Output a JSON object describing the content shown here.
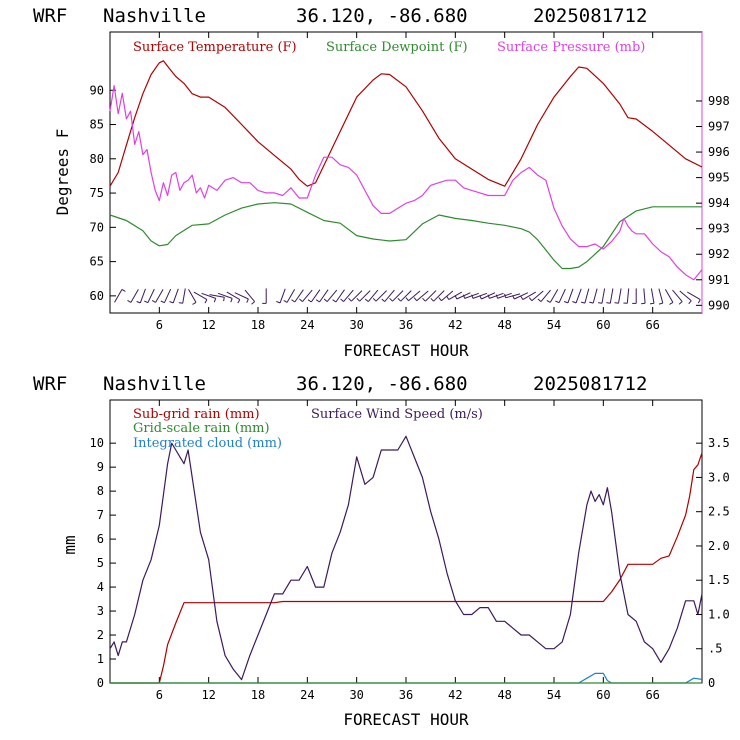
{
  "header": {
    "model": "WRF",
    "station": "Nashville",
    "coords": "36.120, -86.680",
    "run": "2025081712"
  },
  "colors": {
    "temperature": "#b00000",
    "dewpoint": "#2f8a2f",
    "pressure": "#e040e0",
    "wind": "#3c1a5a",
    "rain": "#b00000",
    "gridrain": "#2f8a2f",
    "cloud": "#1f7fd0"
  },
  "chart_data": [
    {
      "type": "line",
      "xlabel": "FORECAST HOUR",
      "ylabel": "Degrees F",
      "xlim": [
        0,
        72
      ],
      "ylim": [
        57.5,
        98.5
      ],
      "y2lim": [
        989.7,
        1000.7
      ],
      "x_ticks": [
        6,
        12,
        18,
        24,
        30,
        36,
        42,
        48,
        54,
        60,
        66
      ],
      "x_tick_labels": [
        "6",
        "12",
        "18",
        "24",
        "30",
        "36",
        "42",
        "48",
        "54",
        "60",
        "66"
      ],
      "y_ticks": [
        60,
        65,
        70,
        75,
        80,
        85,
        90
      ],
      "y2_ticks": [
        990,
        991,
        992,
        993,
        994,
        995,
        996,
        997,
        998
      ],
      "grid": false,
      "legend_position": "top",
      "legend": [
        "Surface Temperature (F)",
        "Surface Dewpoint (F)",
        "Surface Pressure (mb)"
      ],
      "series": [
        {
          "name": "Surface Temperature (F)",
          "axis": "left",
          "x": [
            0,
            1,
            2,
            3,
            4,
            5,
            6,
            6.5,
            7,
            8,
            9,
            10,
            11,
            12,
            14,
            16,
            18,
            20,
            22,
            23,
            24,
            25,
            26,
            28,
            30,
            32,
            33,
            34,
            36,
            38,
            40,
            42,
            44,
            46,
            48,
            50,
            52,
            54,
            56,
            57,
            58,
            60,
            62,
            63,
            64,
            66,
            68,
            70,
            72
          ],
          "values": [
            76,
            78,
            82,
            86,
            89.5,
            92.3,
            94,
            94.3,
            93.5,
            92,
            91,
            89.5,
            89,
            89,
            87.5,
            85,
            82.5,
            80.5,
            78.5,
            77,
            76,
            76.5,
            79,
            84,
            89,
            91.5,
            92.4,
            92.3,
            90.5,
            87,
            83,
            80,
            78.5,
            77,
            76,
            80,
            85,
            89,
            92,
            93.4,
            93.2,
            91,
            88,
            86,
            85.8,
            84,
            82,
            80,
            78.8
          ]
        },
        {
          "name": "Surface Dewpoint (F)",
          "axis": "left",
          "x": [
            0,
            2,
            4,
            5,
            6,
            7,
            8,
            10,
            12,
            14,
            16,
            18,
            20,
            22,
            24,
            26,
            28,
            30,
            32,
            34,
            36,
            38,
            40,
            42,
            44,
            46,
            48,
            50,
            51,
            52,
            53,
            54,
            55,
            56,
            57,
            58,
            60,
            62,
            64,
            66,
            68,
            70,
            72
          ],
          "values": [
            71.8,
            71,
            69.5,
            68,
            67.3,
            67.5,
            68.8,
            70.3,
            70.5,
            71.8,
            72.8,
            73.4,
            73.6,
            73.4,
            72.2,
            71,
            70.6,
            68.8,
            68.3,
            68,
            68.2,
            70.5,
            71.8,
            71.3,
            71,
            70.6,
            70.3,
            69.8,
            69.3,
            68.2,
            66.7,
            65.2,
            64,
            64,
            64.2,
            65,
            67.2,
            70.8,
            72.4,
            73,
            73,
            73,
            73
          ]
        },
        {
          "name": "Surface Pressure (mb)",
          "axis": "right",
          "x": [
            0,
            0.5,
            1,
            1.5,
            2,
            2.5,
            3,
            3.5,
            4,
            4.5,
            5,
            5.5,
            6,
            6.5,
            7,
            7.5,
            8,
            8.5,
            9,
            9.5,
            10,
            10.5,
            11,
            11.5,
            12,
            13,
            14,
            15,
            16,
            17,
            18,
            19,
            20,
            21,
            22,
            23,
            24,
            25,
            26,
            27,
            28,
            29,
            30,
            31,
            32,
            33,
            34,
            35,
            36,
            37,
            38,
            39,
            40,
            41,
            42,
            43,
            44,
            45,
            46,
            47,
            48,
            49,
            50,
            51,
            52,
            53,
            54,
            55,
            56,
            57,
            58,
            59,
            60,
            61,
            62,
            62.5,
            63,
            63.5,
            64,
            65,
            66,
            67,
            68,
            69,
            70,
            71,
            72
          ],
          "values": [
            997.6,
            998.6,
            997.5,
            998.3,
            997.3,
            997.6,
            996.3,
            996.8,
            995.9,
            996.1,
            995.2,
            994.5,
            994.1,
            994.8,
            994.3,
            995.1,
            995.2,
            994.5,
            994.8,
            994.9,
            995.1,
            994.4,
            994.6,
            994.2,
            994.7,
            994.5,
            994.9,
            995,
            994.8,
            994.8,
            994.5,
            994.4,
            994.4,
            994.3,
            994.6,
            994.2,
            994.2,
            995.1,
            995.8,
            995.8,
            995.5,
            995.4,
            995.1,
            994.5,
            993.9,
            993.6,
            993.6,
            993.8,
            994,
            994.1,
            994.3,
            994.7,
            994.8,
            994.9,
            994.9,
            994.6,
            994.5,
            994.4,
            994.3,
            994.3,
            994.3,
            994.9,
            995.2,
            995.4,
            995.1,
            994.9,
            993.8,
            993.1,
            992.6,
            992.3,
            992.3,
            992.4,
            992.2,
            992.5,
            992.9,
            993.4,
            993.1,
            992.9,
            992.8,
            992.8,
            992.4,
            992.1,
            991.9,
            991.5,
            991.2,
            991,
            991.4
          ]
        },
        {
          "name": "Wind barbs",
          "axis": "left",
          "type": "barbs",
          "x": [
            1,
            3,
            4,
            5,
            6,
            7,
            8,
            9,
            10,
            11,
            12,
            13,
            14,
            15,
            16,
            17,
            19,
            21,
            22,
            23,
            24,
            25,
            26,
            27,
            28,
            29,
            30,
            31,
            32,
            33,
            34,
            35,
            36,
            37,
            38,
            39,
            40,
            41,
            42,
            43,
            44,
            45,
            46,
            47,
            48,
            49,
            50,
            51,
            52,
            53,
            54,
            55,
            56,
            57,
            58,
            59,
            60,
            61,
            62,
            63,
            64,
            65,
            66,
            67,
            68,
            69,
            70,
            71
          ],
          "angles": [
            30,
            210,
            200,
            205,
            210,
            205,
            200,
            190,
            150,
            120,
            110,
            100,
            110,
            120,
            115,
            140,
            180,
            200,
            210,
            215,
            220,
            215,
            215,
            220,
            215,
            220,
            225,
            225,
            220,
            225,
            220,
            225,
            225,
            230,
            230,
            225,
            225,
            230,
            240,
            245,
            250,
            250,
            245,
            250,
            250,
            255,
            245,
            240,
            230,
            220,
            210,
            205,
            200,
            200,
            195,
            195,
            190,
            190,
            190,
            185,
            180,
            175,
            170,
            165,
            150,
            140,
            130,
            120
          ]
        }
      ]
    },
    {
      "type": "line",
      "xlabel": "FORECAST HOUR",
      "ylabel": "mm",
      "xlim": [
        0,
        72
      ],
      "ylim": [
        0,
        11.8
      ],
      "y2lim": [
        0,
        4.13
      ],
      "x_ticks": [
        6,
        12,
        18,
        24,
        30,
        36,
        42,
        48,
        54,
        60,
        66
      ],
      "x_tick_labels": [
        "6",
        "12",
        "18",
        "24",
        "30",
        "36",
        "42",
        "48",
        "54",
        "60",
        "66"
      ],
      "y_ticks": [
        0,
        1,
        2,
        3,
        4,
        5,
        6,
        7,
        8,
        9,
        10
      ],
      "y2_ticks": [
        0,
        0.5,
        1.0,
        1.5,
        2.0,
        2.5,
        3.0,
        3.5
      ],
      "y2_tick_labels": [
        "0",
        ".5",
        "1.0",
        "1.5",
        "2.0",
        "2.5",
        "3.0",
        "3.5"
      ],
      "grid": false,
      "legend_position": "top-left",
      "legend": [
        "Sub-grid rain (mm)",
        "Surface Wind Speed (m/s)",
        "Grid-scale rain (mm)",
        "Integrated cloud (mm)"
      ],
      "series": [
        {
          "name": "Sub-grid rain (mm)",
          "axis": "left",
          "x": [
            0,
            6,
            6.5,
            7,
            8,
            9,
            10,
            12,
            20,
            21,
            30,
            40,
            50,
            56,
            60,
            61,
            62,
            63,
            64,
            65,
            66,
            67,
            68,
            69,
            70,
            70.5,
            71,
            71.5,
            72
          ],
          "values": [
            0,
            0,
            0.7,
            1.6,
            2.5,
            3.35,
            3.35,
            3.35,
            3.35,
            3.4,
            3.4,
            3.4,
            3.4,
            3.4,
            3.4,
            3.8,
            4.3,
            4.95,
            4.95,
            4.95,
            4.95,
            5.2,
            5.3,
            6.1,
            7.0,
            7.8,
            8.9,
            9.1,
            9.6
          ]
        },
        {
          "name": "Surface Wind Speed (m/s)",
          "axis": "right",
          "x": [
            0,
            0.5,
            1,
            1.5,
            2,
            3,
            4,
            5,
            6,
            7,
            7.5,
            8,
            8.5,
            9,
            9.5,
            10,
            11,
            12,
            13,
            14,
            15,
            16,
            17,
            18,
            19,
            20,
            21,
            22,
            23,
            24,
            25,
            26,
            27,
            28,
            29,
            30,
            31,
            32,
            33,
            34,
            35,
            36,
            37,
            38,
            39,
            40,
            41,
            42,
            43,
            44,
            45,
            46,
            47,
            48,
            49,
            50,
            51,
            52,
            53,
            54,
            55,
            56,
            57,
            58,
            58.5,
            59,
            59.5,
            60,
            60.5,
            61,
            62,
            63,
            64,
            65,
            66,
            67,
            68,
            69,
            70,
            71,
            71.5,
            72
          ],
          "values": [
            0.5,
            0.6,
            0.4,
            0.6,
            0.6,
            1.0,
            1.5,
            1.8,
            2.3,
            3.2,
            3.5,
            3.4,
            3.3,
            3.2,
            3.4,
            3.0,
            2.2,
            1.8,
            0.9,
            0.4,
            0.2,
            0.05,
            0.4,
            0.7,
            1.0,
            1.3,
            1.3,
            1.5,
            1.5,
            1.7,
            1.4,
            1.4,
            1.9,
            2.2,
            2.6,
            3.3,
            2.9,
            3.0,
            3.4,
            3.4,
            3.4,
            3.6,
            3.3,
            3.0,
            2.5,
            2.1,
            1.6,
            1.2,
            1.0,
            1.0,
            1.1,
            1.1,
            0.9,
            0.9,
            0.8,
            0.7,
            0.7,
            0.6,
            0.5,
            0.5,
            0.6,
            1.0,
            1.9,
            2.6,
            2.8,
            2.65,
            2.75,
            2.6,
            2.85,
            2.5,
            1.6,
            1.0,
            0.9,
            0.6,
            0.5,
            0.3,
            0.5,
            0.8,
            1.2,
            1.2,
            1.0,
            1.3
          ]
        },
        {
          "name": "Integrated cloud (mm)",
          "axis": "left",
          "x": [
            0,
            57,
            58,
            59,
            60,
            60.5,
            61,
            62,
            70,
            71,
            72
          ],
          "values": [
            0,
            0,
            0.2,
            0.4,
            0.4,
            0.1,
            0,
            0,
            0,
            0.2,
            0.15
          ]
        },
        {
          "name": "Grid-scale rain (mm)",
          "axis": "left",
          "x": [
            0,
            72
          ],
          "values": [
            0,
            0
          ]
        }
      ]
    }
  ]
}
